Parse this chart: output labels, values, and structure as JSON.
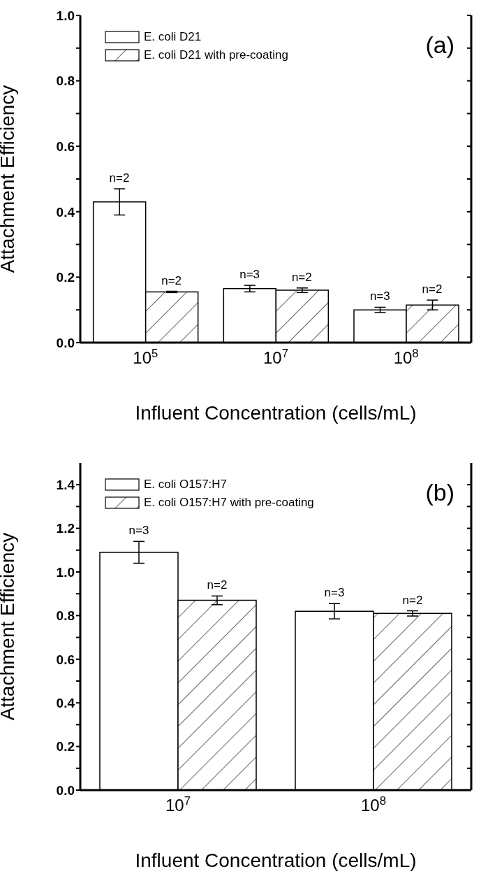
{
  "chart_data": [
    {
      "type": "bar",
      "categories": [
        "10$^{5}$",
        "10$^{7}$",
        "10$^{8}$"
      ],
      "xlabel": "Influent Concentration (cells/mL)",
      "ylabel": "Attachment Efficiency",
      "ylim": [
        0,
        1.0
      ],
      "yticks": [
        {
          "value": 0,
          "label": "0.0"
        },
        {
          "value": 0.1,
          "label": null
        },
        0.2,
        {
          "value": 0.3,
          "label": null
        },
        0.4,
        {
          "value": 0.5,
          "label": null
        },
        0.6,
        {
          "value": 0.7,
          "label": null
        },
        0.8,
        {
          "value": 0.9,
          "label": null
        },
        {
          "value": 1,
          "label": "1.0"
        }
      ],
      "legend": "top left",
      "annotations": [
        "(a)",
        {
          "text": "n=2",
          "x": "10$^{5}$",
          "y": 0.43
        },
        {
          "text": "n=2",
          "x": "10$^{5}$",
          "y": 0.155
        },
        {
          "text": "n=3",
          "x": "10$^{7}$",
          "y": 0.165
        },
        {
          "text": "n=2",
          "x": "10$^{7}$",
          "y": 0.16
        },
        {
          "text": "n=3",
          "x": "10$^{8}$",
          "y": 0.1
        },
        {
          "text": "n=2",
          "x": "10$^{8}$",
          "y": 0.115
        }
      ],
      "series": [
        {
          "name": "E. coli D21",
          "color": "#ffffff",
          "values": [
            0.43,
            0.165,
            0.1
          ],
          "errors": [
            0.04,
            0.01,
            0.008
          ]
        },
        {
          "name": "E. coli D21 with pre-coating",
          "color": "#000000",
          "values": [
            0.155,
            0.16,
            0.115
          ],
          "errors": [
            0.002,
            0.007,
            0.015
          ]
        }
      ]
    },
    {
      "type": "bar",
      "categories": [
        "10$^{7}$",
        "10$^{8}$"
      ],
      "xlabel": "Influent Concentration (cells/mL)",
      "ylabel": "Attachment Efficiency",
      "ylim": [
        0,
        1.5
      ],
      "yticks": [
        {
          "value": 0,
          "label": "0.0"
        },
        {
          "value": 0.1,
          "label": null
        },
        0.2,
        {
          "value": 0.3,
          "label": null
        },
        0.4,
        {
          "value": 0.5,
          "label": null
        },
        0.6,
        {
          "value": 0.7,
          "label": null
        },
        0.8,
        {
          "value": 0.9,
          "label": null
        },
        {
          "value": 1,
          "label": "1.0"
        },
        {
          "value": 1.1,
          "label": null
        },
        1.2,
        {
          "value": 1.3,
          "label": null
        },
        1.4
      ],
      "legend": "top left",
      "annotations": [
        "(b)",
        {
          "text": "n=3",
          "x": "10$^{7}$",
          "y": 1.09
        },
        {
          "text": "n=2",
          "x": "10$^{7}$",
          "y": 0.87
        },
        {
          "text": "n=3",
          "x": "10$^{8}$",
          "y": 0.82
        },
        {
          "text": "n=2",
          "x": "10$^{8}$",
          "y": 0.81
        }
      ],
      "series": [
        {
          "name": "E. coli O157:H7",
          "color": "#ffffff",
          "values": [
            1.09,
            0.82
          ],
          "errors": [
            0.05,
            0.035
          ]
        },
        {
          "name": "E. coli O157:H7 with pre-coating",
          "color": "#000000",
          "values": [
            0.87,
            0.81
          ],
          "errors": [
            0.02,
            0.012
          ]
        }
      ]
    }
  ]
}
